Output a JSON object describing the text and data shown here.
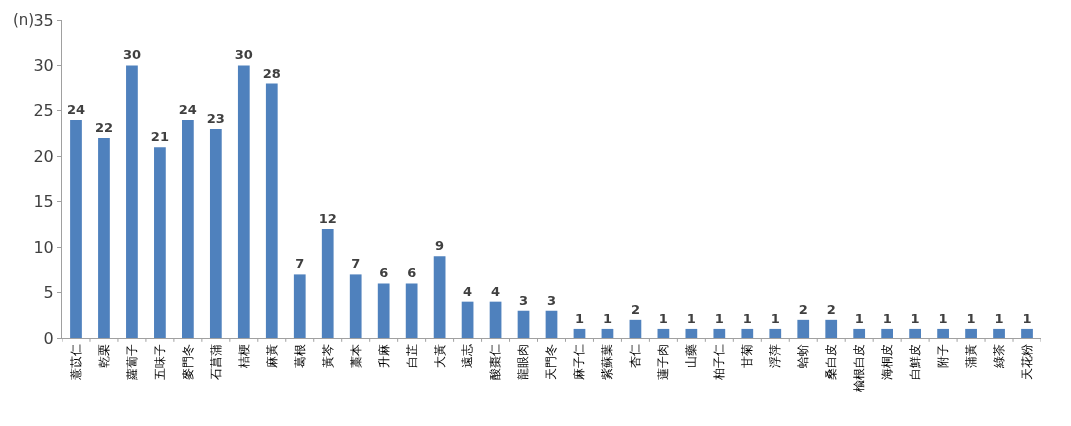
{
  "chart_data": {
    "type": "bar",
    "ylabel": "(n)",
    "categories": [
      "薏苡仁",
      "乾栗",
      "蘿蔔子",
      "五味子",
      "麥門冬",
      "石菖蒲",
      "桔梗",
      "麻黃",
      "葛根",
      "黃芩",
      "藁本",
      "升麻",
      "白芷",
      "大黃",
      "遠志",
      "酸棗仁",
      "龍眼肉",
      "天門冬",
      "麻子仁",
      "紫蘇葉",
      "杏仁",
      "蓮子肉",
      "山藥",
      "柏子仁",
      "甘菊",
      "浮萍",
      "蛤蚧",
      "桑白皮",
      "楡根白皮",
      "海桐皮",
      "白鮮皮",
      "附子",
      "蒲黃",
      "綠茶",
      "天花粉"
    ],
    "values": [
      24,
      22,
      30,
      21,
      24,
      23,
      30,
      28,
      7,
      12,
      7,
      6,
      6,
      9,
      4,
      4,
      3,
      3,
      1,
      1,
      2,
      1,
      1,
      1,
      1,
      1,
      2,
      2,
      1,
      1,
      1,
      1,
      1,
      1,
      1
    ],
    "color": "#4f81bd",
    "ylim": [
      0,
      35
    ],
    "yticks": [
      0,
      5,
      10,
      15,
      20,
      25,
      30,
      35
    ],
    "data_labels": true
  }
}
